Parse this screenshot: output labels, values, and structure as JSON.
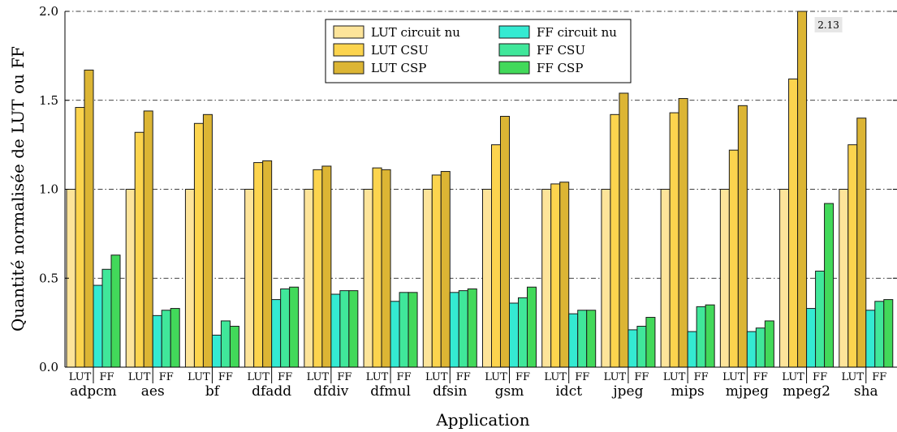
{
  "chart_data": {
    "type": "bar",
    "xlabel": "Application",
    "ylabel": "Quantité normalisée de LUT ou FF",
    "ylim": [
      0,
      2.0
    ],
    "yticks": [
      "0.0",
      "0.5",
      "1.0",
      "1.5",
      "2.0"
    ],
    "grid": "horizontal dash-dot",
    "legend_position": "top-center",
    "categories": [
      "adpcm",
      "aes",
      "bf",
      "dfadd",
      "dfdiv",
      "dfmul",
      "dfsin",
      "gsm",
      "idct",
      "jpeg",
      "mips",
      "mjpeg",
      "mpeg2",
      "sha"
    ],
    "group_labels": [
      "LUT",
      "FF"
    ],
    "series": [
      {
        "name": "LUT circuit nu",
        "group": "LUT",
        "color": "#fde49a",
        "values": [
          1.0,
          1.0,
          1.0,
          1.0,
          1.0,
          1.0,
          1.0,
          1.0,
          1.0,
          1.0,
          1.0,
          1.0,
          1.0,
          1.0
        ]
      },
      {
        "name": "LUT CSU",
        "group": "LUT",
        "color": "#fcd44e",
        "values": [
          1.46,
          1.32,
          1.37,
          1.15,
          1.11,
          1.12,
          1.08,
          1.25,
          1.03,
          1.42,
          1.43,
          1.22,
          1.62,
          1.25
        ]
      },
      {
        "name": "LUT CSP",
        "group": "LUT",
        "color": "#dcb534",
        "values": [
          1.67,
          1.44,
          1.42,
          1.16,
          1.13,
          1.11,
          1.1,
          1.41,
          1.04,
          1.54,
          1.51,
          1.47,
          2.13,
          1.4
        ]
      },
      {
        "name": "FF circuit nu",
        "group": "FF",
        "color": "#34ead2",
        "values": [
          0.46,
          0.29,
          0.18,
          0.38,
          0.41,
          0.37,
          0.42,
          0.36,
          0.3,
          0.21,
          0.2,
          0.2,
          0.33,
          0.32
        ]
      },
      {
        "name": "FF CSU",
        "group": "FF",
        "color": "#40e79a",
        "values": [
          0.55,
          0.32,
          0.26,
          0.44,
          0.43,
          0.42,
          0.43,
          0.39,
          0.32,
          0.23,
          0.34,
          0.22,
          0.54,
          0.37
        ]
      },
      {
        "name": "FF CSP",
        "group": "FF",
        "color": "#42d95a",
        "values": [
          0.63,
          0.33,
          0.23,
          0.45,
          0.43,
          0.42,
          0.44,
          0.45,
          0.32,
          0.28,
          0.35,
          0.26,
          0.92,
          0.38
        ]
      }
    ],
    "annotations": [
      {
        "text": "2.13",
        "category": "mpeg2",
        "series": "LUT CSP"
      }
    ]
  }
}
